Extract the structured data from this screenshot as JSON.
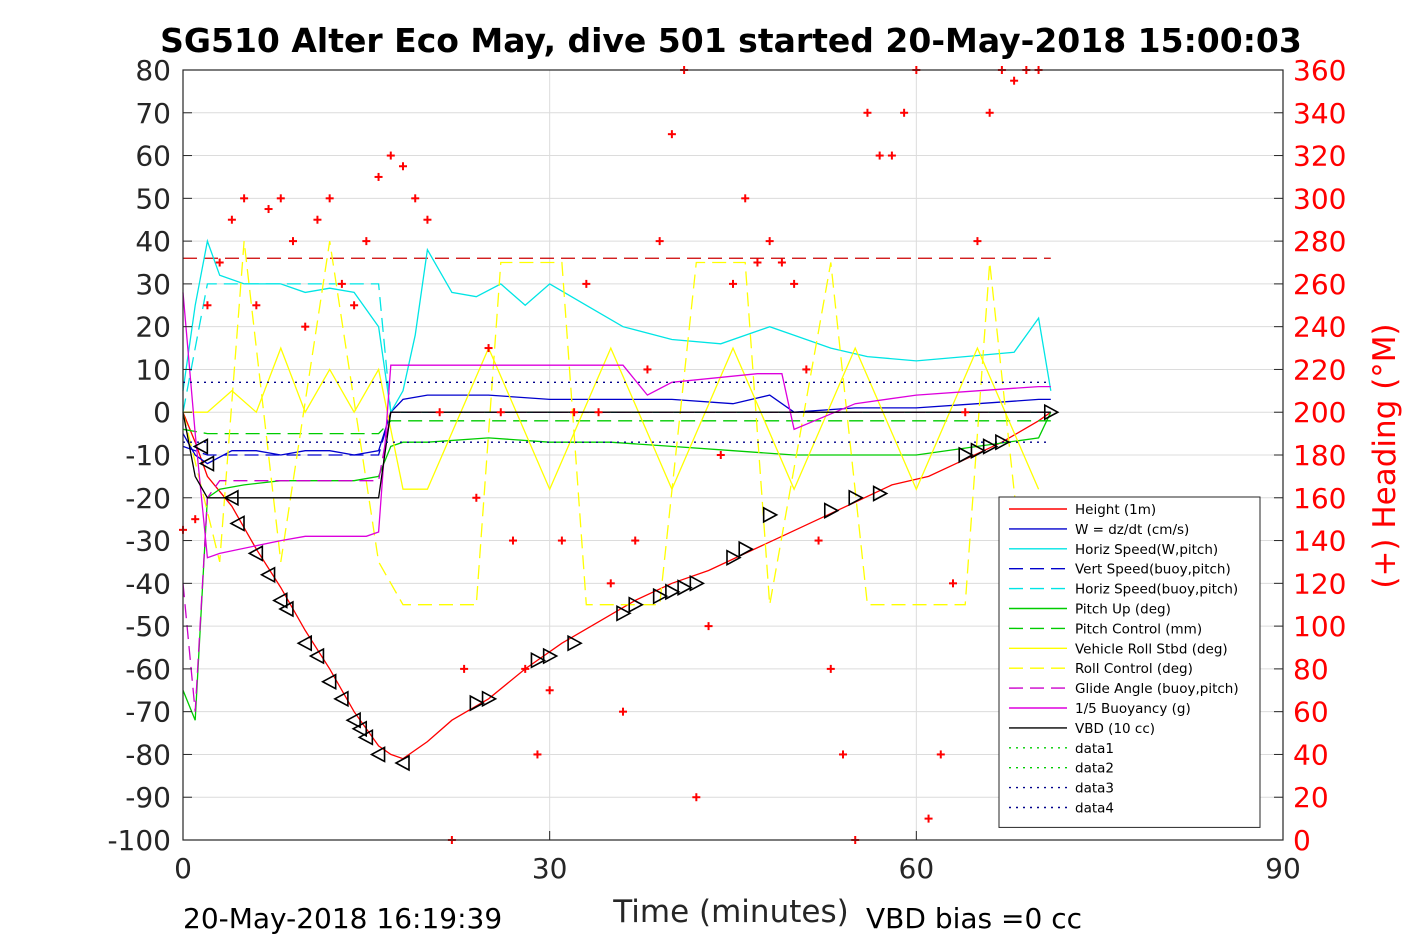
{
  "chart_data": {
    "type": "line",
    "title": "SG510 Alter Eco May, dive 501 started 20-May-2018 15:00:03",
    "xlabel": "Time (minutes)",
    "ylabel_right": "(+) Heading (°M)",
    "xlim": [
      0,
      90
    ],
    "ylim": [
      -100,
      80
    ],
    "ylim_right": [
      0,
      360
    ],
    "x_ticks": [
      0,
      30,
      60,
      90
    ],
    "y_ticks": [
      80,
      70,
      60,
      50,
      40,
      30,
      20,
      10,
      0,
      -10,
      -20,
      -30,
      -40,
      -50,
      -60,
      -70,
      -80,
      -90,
      -100
    ],
    "y_ticks_right": [
      360,
      340,
      320,
      300,
      280,
      260,
      240,
      220,
      200,
      180,
      160,
      140,
      120,
      100,
      80,
      60,
      40,
      20,
      0
    ],
    "grid": true,
    "legend_position": "bottom-right",
    "footer_left": "20-May-2018 16:19:39",
    "footer_right": "VBD bias =0 cc",
    "colors": {
      "height": "#ff0000",
      "w": "#0000cd",
      "horiz_w": "#00e5e5",
      "pitch": "#00cc00",
      "roll": "#ffff00",
      "glide": "#cc00cc",
      "buoyancy": "#dd00dd",
      "vbd": "#000000",
      "heading": "#ff0000"
    },
    "series": [
      {
        "name": "Height (1m)",
        "color": "#ff0000",
        "style": "solid",
        "x": [
          0,
          1,
          2,
          4,
          6,
          8,
          10,
          12,
          14,
          16,
          17,
          18,
          20,
          22,
          25,
          28,
          31,
          34,
          37,
          40,
          43,
          46,
          49,
          52,
          55,
          58,
          61,
          64,
          67,
          70,
          71
        ],
        "y": [
          0,
          -7,
          -15,
          -22,
          -32,
          -41,
          -51,
          -60,
          -70,
          -78,
          -80,
          -81,
          -77,
          -72,
          -67,
          -60,
          -54,
          -49,
          -44,
          -40,
          -37,
          -33,
          -29,
          -25,
          -21,
          -17,
          -15,
          -11,
          -7,
          -2,
          0
        ]
      },
      {
        "name": "W = dz/dt (cm/s)",
        "color": "#0000cd",
        "style": "solid",
        "x": [
          0,
          1,
          2,
          4,
          6,
          8,
          10,
          12,
          14,
          16,
          17,
          18,
          20,
          25,
          30,
          35,
          40,
          45,
          48,
          50,
          55,
          60,
          65,
          70,
          71
        ],
        "y": [
          -5,
          -10,
          -12,
          -9,
          -9,
          -10,
          -9,
          -9,
          -10,
          -9,
          0,
          3,
          4,
          4,
          3,
          3,
          3,
          2,
          4,
          0,
          1,
          1,
          2,
          3,
          3
        ]
      },
      {
        "name": "Horiz Speed(W,pitch)",
        "color": "#00e5e5",
        "style": "solid",
        "x": [
          0,
          1,
          2,
          3,
          5,
          8,
          10,
          12,
          14,
          16,
          17,
          18,
          19,
          20,
          22,
          24,
          26,
          28,
          30,
          33,
          36,
          40,
          44,
          48,
          50,
          53,
          56,
          60,
          64,
          68,
          70,
          71
        ],
        "y": [
          5,
          25,
          40,
          32,
          30,
          30,
          28,
          29,
          28,
          20,
          0,
          5,
          18,
          38,
          28,
          27,
          30,
          25,
          30,
          25,
          20,
          17,
          16,
          20,
          18,
          15,
          13,
          12,
          13,
          14,
          22,
          5
        ]
      },
      {
        "name": "Vert Speed(buoy,pitch)",
        "color": "#0000cd",
        "style": "dashed",
        "x": [
          0,
          2,
          16,
          17,
          71
        ],
        "y": [
          -8,
          -10,
          -10,
          0,
          0
        ]
      },
      {
        "name": "Horiz Speed(buoy,pitch)",
        "color": "#00e5e5",
        "style": "dashed",
        "x": [
          0,
          2,
          16,
          17,
          71
        ],
        "y": [
          0,
          30,
          30,
          0,
          0
        ]
      },
      {
        "name": "Pitch Up (deg)",
        "color": "#00cc00",
        "style": "solid",
        "x": [
          0,
          1,
          2,
          3,
          5,
          8,
          10,
          12,
          14,
          16,
          17,
          18,
          20,
          25,
          30,
          35,
          40,
          45,
          50,
          55,
          60,
          65,
          70,
          71
        ],
        "y": [
          -65,
          -72,
          -20,
          -18,
          -17,
          -16,
          -16,
          -16,
          -16,
          -15,
          -8,
          -7,
          -7,
          -6,
          -7,
          -7,
          -8,
          -9,
          -10,
          -10,
          -10,
          -8,
          -6,
          0
        ]
      },
      {
        "name": "Pitch Control (mm)",
        "color": "#00cc00",
        "style": "dashed",
        "x": [
          0,
          2,
          16,
          17,
          71
        ],
        "y": [
          -4,
          -5,
          -5,
          -2,
          -2
        ]
      },
      {
        "name": "Vehicle Roll Stbd (deg)",
        "color": "#ffff00",
        "style": "solid",
        "x": [
          0,
          2,
          4,
          6,
          8,
          10,
          12,
          14,
          16,
          18,
          20,
          25,
          30,
          35,
          40,
          45,
          50,
          55,
          60,
          65,
          70
        ],
        "y": [
          0,
          0,
          5,
          0,
          15,
          0,
          10,
          0,
          10,
          -18,
          -18,
          15,
          -18,
          15,
          -18,
          15,
          -18,
          15,
          -18,
          15,
          -18
        ]
      },
      {
        "name": "Roll Control (deg)",
        "color": "#ffff00",
        "style": "dashed",
        "x": [
          0,
          3,
          5,
          8,
          12,
          16,
          18,
          24,
          26,
          31,
          33,
          39,
          42,
          46,
          48,
          53,
          56,
          64,
          66,
          69,
          71
        ],
        "y": [
          0,
          -35,
          40,
          -35,
          40,
          -35,
          -45,
          -45,
          35,
          35,
          -45,
          -45,
          35,
          35,
          -45,
          35,
          -45,
          -45,
          35,
          -45,
          -30
        ]
      },
      {
        "name": "Glide Angle (buoy,pitch)",
        "color": "#cc00cc",
        "style": "dashed",
        "x": [
          0,
          1,
          2,
          3,
          16,
          17,
          71
        ],
        "y": [
          -40,
          -70,
          -20,
          -16,
          -16,
          0,
          0
        ]
      },
      {
        "name": "1/5 Buoyancy (g)",
        "color": "#dd00dd",
        "style": "solid",
        "x": [
          0,
          1,
          2,
          3,
          8,
          10,
          15,
          16,
          17,
          36,
          38,
          40,
          47,
          49,
          50,
          55,
          60,
          65,
          70,
          71
        ],
        "y": [
          28,
          -5,
          -34,
          -33,
          -30,
          -29,
          -29,
          -28,
          11,
          11,
          4,
          7,
          9,
          9,
          -4,
          2,
          4,
          5,
          6,
          6
        ]
      },
      {
        "name": "VBD (10 cc)",
        "color": "#000000",
        "style": "solid",
        "x": [
          0,
          1,
          2,
          16,
          17,
          71
        ],
        "y": [
          0,
          -15,
          -20,
          -20,
          0,
          0
        ]
      },
      {
        "name": "data1",
        "color": "#00cc00",
        "style": "dotted",
        "x": [],
        "y": []
      },
      {
        "name": "data2",
        "color": "#00cc00",
        "style": "dotted",
        "x": [],
        "y": []
      },
      {
        "name": "data3",
        "color": "#00008b",
        "style": "dotted",
        "x": [
          0,
          71
        ],
        "y": [
          7,
          7
        ]
      },
      {
        "name": "data4",
        "color": "#00008b",
        "style": "dotted",
        "x": [
          0,
          71
        ],
        "y": [
          -7,
          -7
        ]
      }
    ],
    "heading_series": {
      "marker": "+",
      "color": "#ff0000",
      "axis": "right",
      "x": [
        0,
        1,
        2,
        3,
        4,
        5,
        6,
        7,
        8,
        9,
        10,
        11,
        12,
        13,
        14,
        15,
        16,
        17,
        18,
        19,
        20,
        21,
        22,
        23,
        24,
        25,
        26,
        27,
        28,
        29,
        30,
        31,
        32,
        33,
        34,
        35,
        36,
        37,
        38,
        39,
        40,
        41,
        42,
        43,
        44,
        45,
        46,
        47,
        48,
        49,
        50,
        51,
        52,
        53,
        54,
        55,
        56,
        57,
        58,
        59,
        60,
        61,
        62,
        63,
        64,
        65,
        66,
        67,
        68,
        69,
        70
      ],
      "y": [
        145,
        150,
        250,
        270,
        290,
        300,
        250,
        295,
        300,
        280,
        240,
        290,
        300,
        260,
        250,
        280,
        310,
        320,
        315,
        300,
        290,
        200,
        0,
        80,
        160,
        230,
        200,
        140,
        80,
        40,
        70,
        140,
        200,
        260,
        200,
        120,
        60,
        140,
        220,
        280,
        330,
        360,
        20,
        100,
        180,
        260,
        300,
        270,
        280,
        270,
        260,
        220,
        140,
        80,
        40,
        0,
        340,
        320,
        320,
        340,
        360,
        10,
        40,
        120,
        200,
        280,
        340,
        360,
        355,
        360,
        360
      ]
    },
    "vbd_markers": {
      "marker": "triangle",
      "x": [
        1.5,
        2,
        4,
        4.5,
        6,
        7,
        8,
        8.5,
        10,
        11,
        12,
        13,
        14,
        14.5,
        15,
        16,
        18,
        24,
        25,
        29,
        30,
        32,
        36,
        37,
        39,
        40,
        41,
        42,
        45,
        46,
        48,
        53,
        55,
        57,
        64,
        65,
        66,
        67,
        71
      ],
      "y": [
        -8,
        -12,
        -20,
        -26,
        -33,
        -38,
        -44,
        -46,
        -54,
        -57,
        -63,
        -67,
        -72,
        -74,
        -76,
        -80,
        -82,
        -68,
        -67,
        -58,
        -57,
        -54,
        -47,
        -45,
        -43,
        -42,
        -41,
        -40,
        -34,
        -32,
        -24,
        -23,
        -20,
        -19,
        -10,
        -9,
        -8,
        -7,
        0
      ]
    },
    "reference_lines": [
      {
        "axis": "right",
        "value": 272,
        "color": "#cc0000",
        "style": "dashed"
      }
    ]
  }
}
